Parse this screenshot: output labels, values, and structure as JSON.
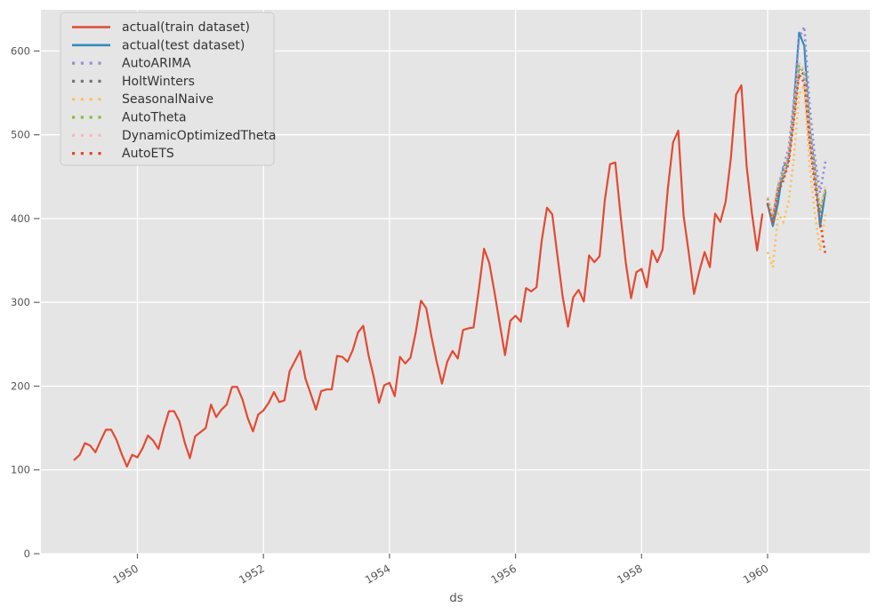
{
  "figure": {
    "background": "#ffffff",
    "plot_background": "#e5e5e5",
    "gridline_color": "#ffffff",
    "tick_mark_color": "#666666",
    "tick_label_color": "#555555",
    "axis_label_color": "#555555"
  },
  "legend": {
    "items": [
      {
        "label": "actual(train dataset)",
        "color": "#E24A33",
        "style": "solid"
      },
      {
        "label": "actual(test dataset)",
        "color": "#348ABD",
        "style": "solid"
      },
      {
        "label": "AutoARIMA",
        "color": "#988ED5",
        "style": "dotted"
      },
      {
        "label": "HoltWinters",
        "color": "#777777",
        "style": "dotted"
      },
      {
        "label": "SeasonalNaive",
        "color": "#FBC15E",
        "style": "dotted"
      },
      {
        "label": "AutoTheta",
        "color": "#8EBA42",
        "style": "dotted"
      },
      {
        "label": "DynamicOptimizedTheta",
        "color": "#FFB5B8",
        "style": "dotted"
      },
      {
        "label": "AutoETS",
        "color": "#E24A33",
        "style": "dotted"
      }
    ]
  },
  "chart_data": {
    "type": "line",
    "title": "",
    "xlabel": "ds",
    "ylabel": "",
    "x_axis": {
      "tick_labels": [
        "1950",
        "1952",
        "1954",
        "1956",
        "1958",
        "1960"
      ],
      "tick_years": [
        1950,
        1952,
        1954,
        1956,
        1958,
        1960
      ],
      "range_months": [
        "1949-01",
        "1960-12"
      ]
    },
    "y_axis": {
      "ticks": [
        0,
        100,
        200,
        300,
        400,
        500,
        600
      ],
      "range": [
        0,
        650
      ],
      "grid": true
    },
    "legend_position": "upper-left",
    "series": [
      {
        "name": "actual(train dataset)",
        "color": "#E24A33",
        "style": "solid",
        "start": "1949-01",
        "values": [
          112,
          118,
          132,
          129,
          121,
          135,
          148,
          148,
          136,
          119,
          104,
          118,
          115,
          126,
          141,
          135,
          125,
          149,
          170,
          170,
          158,
          133,
          114,
          140,
          145,
          150,
          178,
          163,
          172,
          178,
          199,
          199,
          184,
          162,
          146,
          166,
          171,
          180,
          193,
          181,
          183,
          218,
          230,
          242,
          209,
          191,
          172,
          194,
          196,
          196,
          236,
          235,
          229,
          243,
          264,
          272,
          237,
          211,
          180,
          201,
          204,
          188,
          235,
          227,
          234,
          264,
          302,
          293,
          259,
          229,
          203,
          229,
          242,
          233,
          267,
          269,
          270,
          315,
          364,
          347,
          312,
          274,
          237,
          278,
          284,
          277,
          317,
          313,
          318,
          374,
          413,
          405,
          355,
          306,
          271,
          306,
          315,
          301,
          356,
          348,
          355,
          422,
          465,
          467,
          404,
          347,
          305,
          336,
          340,
          318,
          362,
          348,
          363,
          435,
          491,
          505,
          404,
          359,
          310,
          337,
          360,
          342,
          406,
          396,
          420,
          472,
          548,
          559,
          463,
          407,
          362,
          405
        ]
      },
      {
        "name": "actual(test dataset)",
        "color": "#348ABD",
        "style": "solid",
        "start": "1960-01",
        "values": [
          417,
          391,
          419,
          461,
          472,
          535,
          622,
          606,
          508,
          461,
          390,
          432
        ]
      },
      {
        "name": "AutoARIMA",
        "color": "#988ED5",
        "style": "dotted",
        "start": "1960-01",
        "values": [
          424,
          402,
          438,
          462,
          484,
          540,
          616,
          629,
          536,
          474,
          431,
          468
        ]
      },
      {
        "name": "HoltWinters",
        "color": "#777777",
        "style": "dotted",
        "start": "1960-01",
        "values": [
          419,
          397,
          436,
          449,
          470,
          522,
          578,
          571,
          500,
          449,
          407,
          431
        ]
      },
      {
        "name": "SeasonalNaive",
        "color": "#FBC15E",
        "style": "dotted",
        "start": "1960-01",
        "values": [
          360,
          342,
          406,
          396,
          420,
          472,
          548,
          559,
          463,
          407,
          362,
          405
        ]
      },
      {
        "name": "AutoTheta",
        "color": "#8EBA42",
        "style": "dotted",
        "start": "1960-01",
        "values": [
          424,
          401,
          439,
          453,
          474,
          525,
          582,
          574,
          503,
          453,
          410,
          435
        ]
      },
      {
        "name": "DynamicOptimizedTheta",
        "color": "#FFB5B8",
        "style": "dotted",
        "start": "1960-01",
        "values": [
          426,
          404,
          442,
          456,
          477,
          528,
          585,
          578,
          506,
          456,
          413,
          438
        ]
      },
      {
        "name": "AutoETS",
        "color": "#E24A33",
        "style": "dotted",
        "start": "1960-01",
        "values": [
          417,
          394,
          432,
          445,
          466,
          517,
          572,
          562,
          491,
          439,
          397,
          357
        ]
      }
    ]
  }
}
